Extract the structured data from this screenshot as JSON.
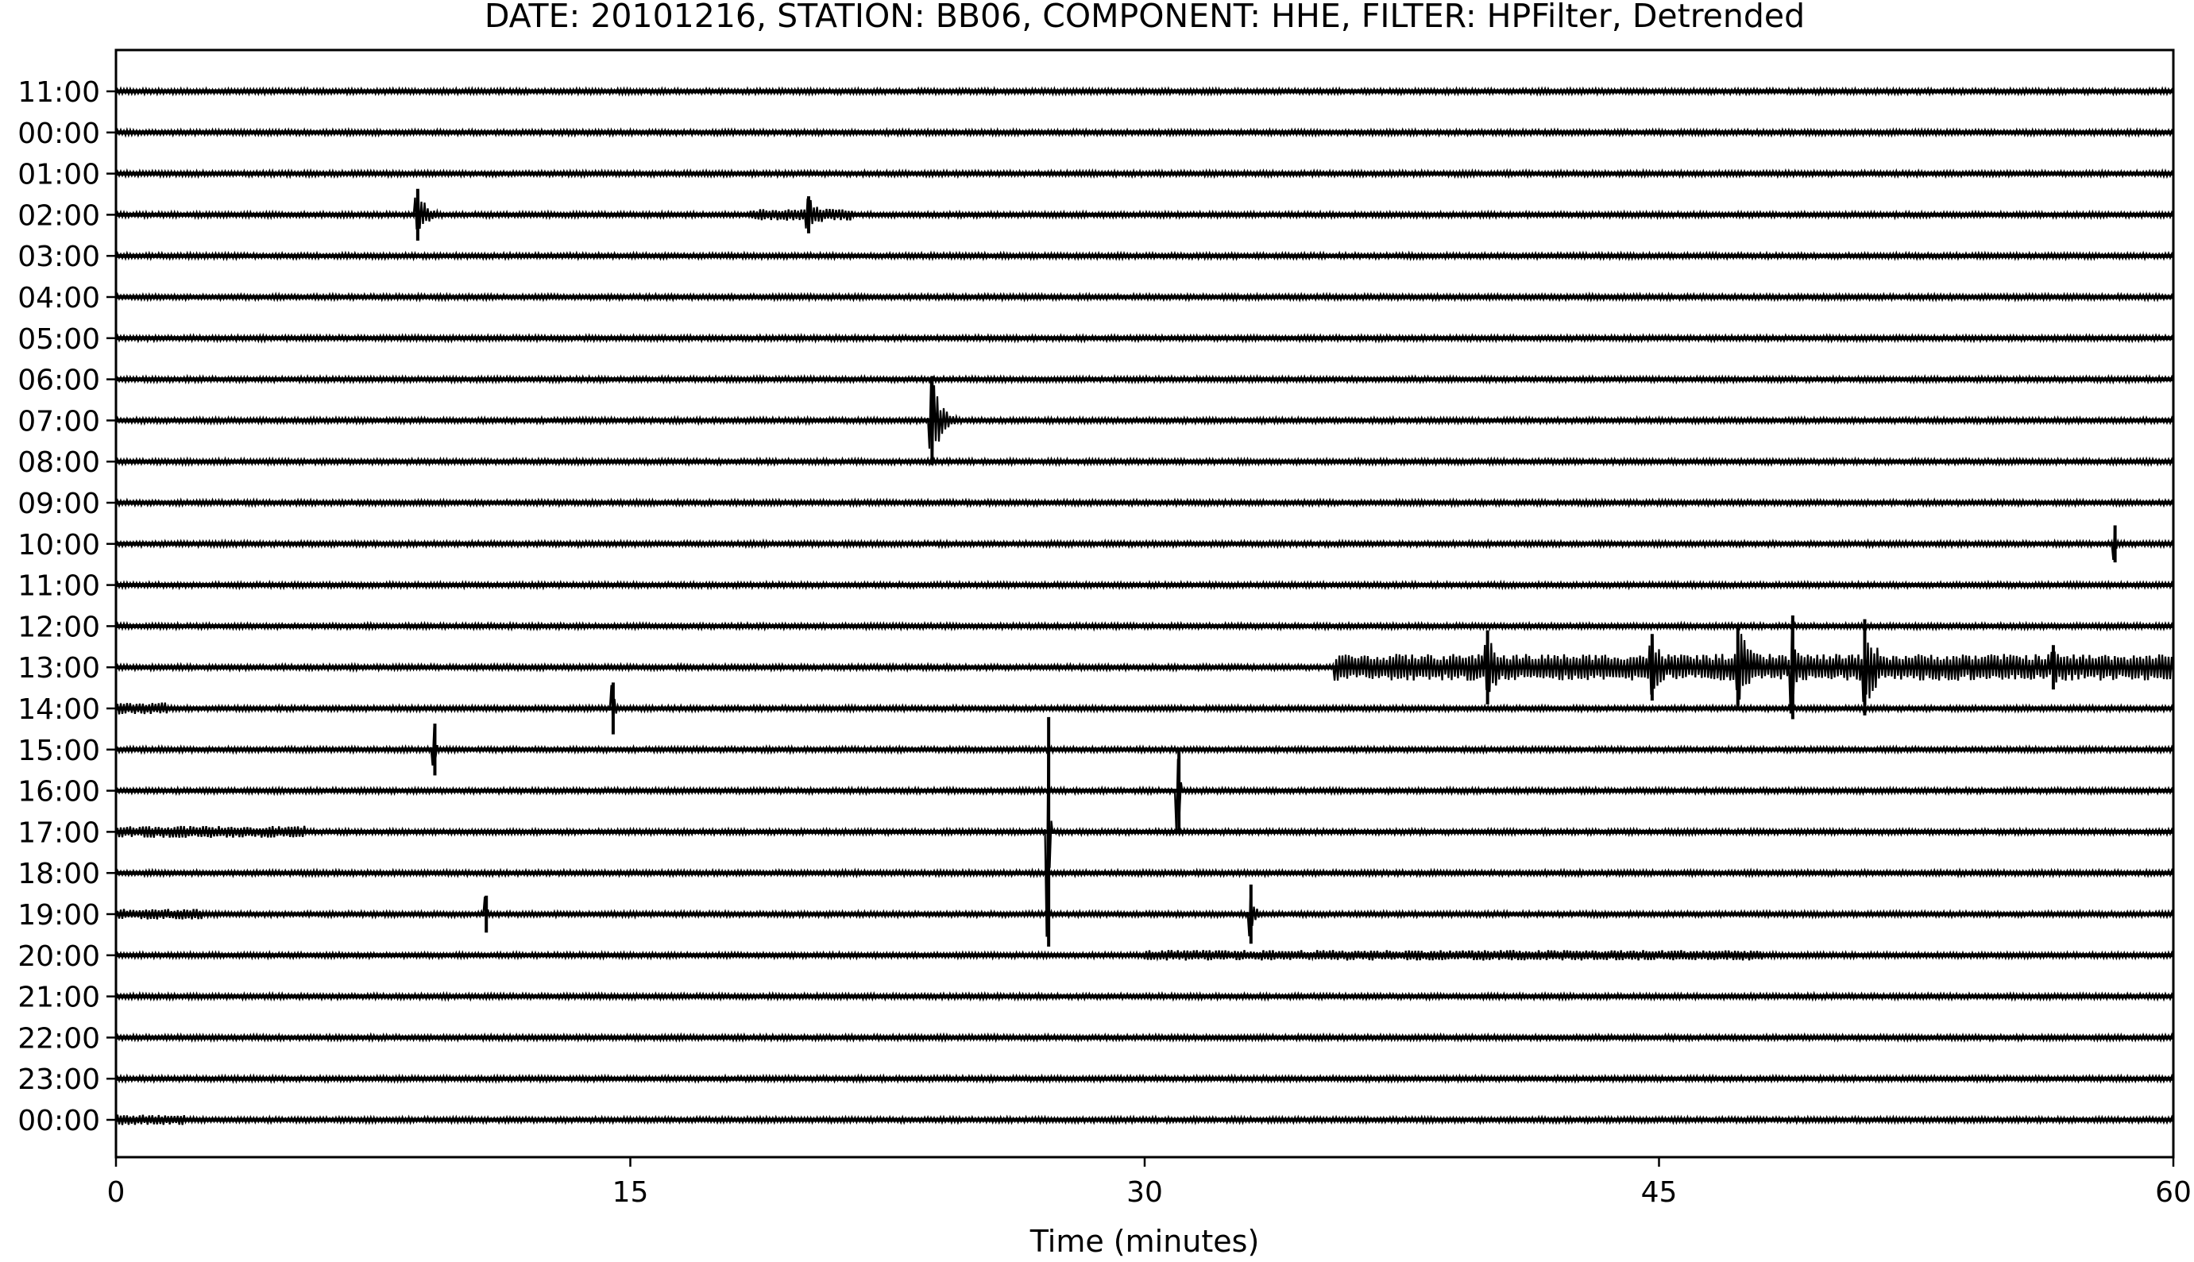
{
  "chart_data": {
    "type": "line",
    "title": "DATE: 20101216, STATION: BB06, COMPONENT: HHE, FILTER: HPFilter, Detrended",
    "xlabel": "Time (minutes)",
    "ylabel": "",
    "xlim": [
      0,
      60
    ],
    "x_ticks": [
      0,
      15,
      30,
      45,
      60
    ],
    "grid": false,
    "row_labels": [
      "11:00",
      "00:00",
      "01:00",
      "02:00",
      "03:00",
      "04:00",
      "05:00",
      "06:00",
      "07:00",
      "08:00",
      "09:00",
      "10:00",
      "11:00",
      "12:00",
      "13:00",
      "14:00",
      "15:00",
      "16:00",
      "17:00",
      "18:00",
      "19:00",
      "20:00",
      "21:00",
      "22:00",
      "23:00",
      "00:00"
    ],
    "trace_color": "#000000",
    "events": [
      {
        "row": 3,
        "minute": 8.8,
        "amplitude": 0.35,
        "duration": 0.8
      },
      {
        "row": 3,
        "minute": 20.2,
        "amplitude": 0.25,
        "duration": 1.2
      },
      {
        "row": 8,
        "minute": 23.8,
        "amplitude": 0.6,
        "duration": 0.8
      },
      {
        "row": 11,
        "minute": 58.3,
        "amplitude": 0.25,
        "duration": 0.1
      },
      {
        "row": 14,
        "minute": 40.0,
        "amplitude": 0.5,
        "duration": 1.0
      },
      {
        "row": 14,
        "minute": 44.8,
        "amplitude": 0.45,
        "duration": 1.0
      },
      {
        "row": 14,
        "minute": 47.3,
        "amplitude": 0.55,
        "duration": 1.5
      },
      {
        "row": 14,
        "minute": 48.9,
        "amplitude": 0.7,
        "duration": 0.4
      },
      {
        "row": 14,
        "minute": 51.0,
        "amplitude": 0.65,
        "duration": 1.2
      },
      {
        "row": 14,
        "minute": 56.5,
        "amplitude": 0.3,
        "duration": 0.8
      },
      {
        "row": 15,
        "minute": 14.5,
        "amplitude": 0.35,
        "duration": 0.2
      },
      {
        "row": 16,
        "minute": 9.3,
        "amplitude": 0.35,
        "duration": 0.1
      },
      {
        "row": 17,
        "minute": 31.0,
        "amplitude": 0.55,
        "duration": 0.1
      },
      {
        "row": 18,
        "minute": 27.2,
        "amplitude": 1.55,
        "duration": 0.1
      },
      {
        "row": 20,
        "minute": 10.8,
        "amplitude": 0.25,
        "duration": 0.1
      },
      {
        "row": 20,
        "minute": 33.1,
        "amplitude": 0.4,
        "duration": 0.3
      }
    ],
    "noise_bands": [
      {
        "row": 14,
        "from": 35.5,
        "to": 60,
        "amplitude": 0.18
      },
      {
        "row": 3,
        "from": 18.5,
        "to": 21.5,
        "amplitude": 0.08
      },
      {
        "row": 15,
        "from": 0,
        "to": 1.5,
        "amplitude": 0.08
      },
      {
        "row": 18,
        "from": 0,
        "to": 5.5,
        "amplitude": 0.08
      },
      {
        "row": 20,
        "from": 0,
        "to": 2.5,
        "amplitude": 0.07
      },
      {
        "row": 25,
        "from": 0,
        "to": 2.0,
        "amplitude": 0.07
      },
      {
        "row": 21,
        "from": 30,
        "to": 48,
        "amplitude": 0.07
      }
    ]
  }
}
